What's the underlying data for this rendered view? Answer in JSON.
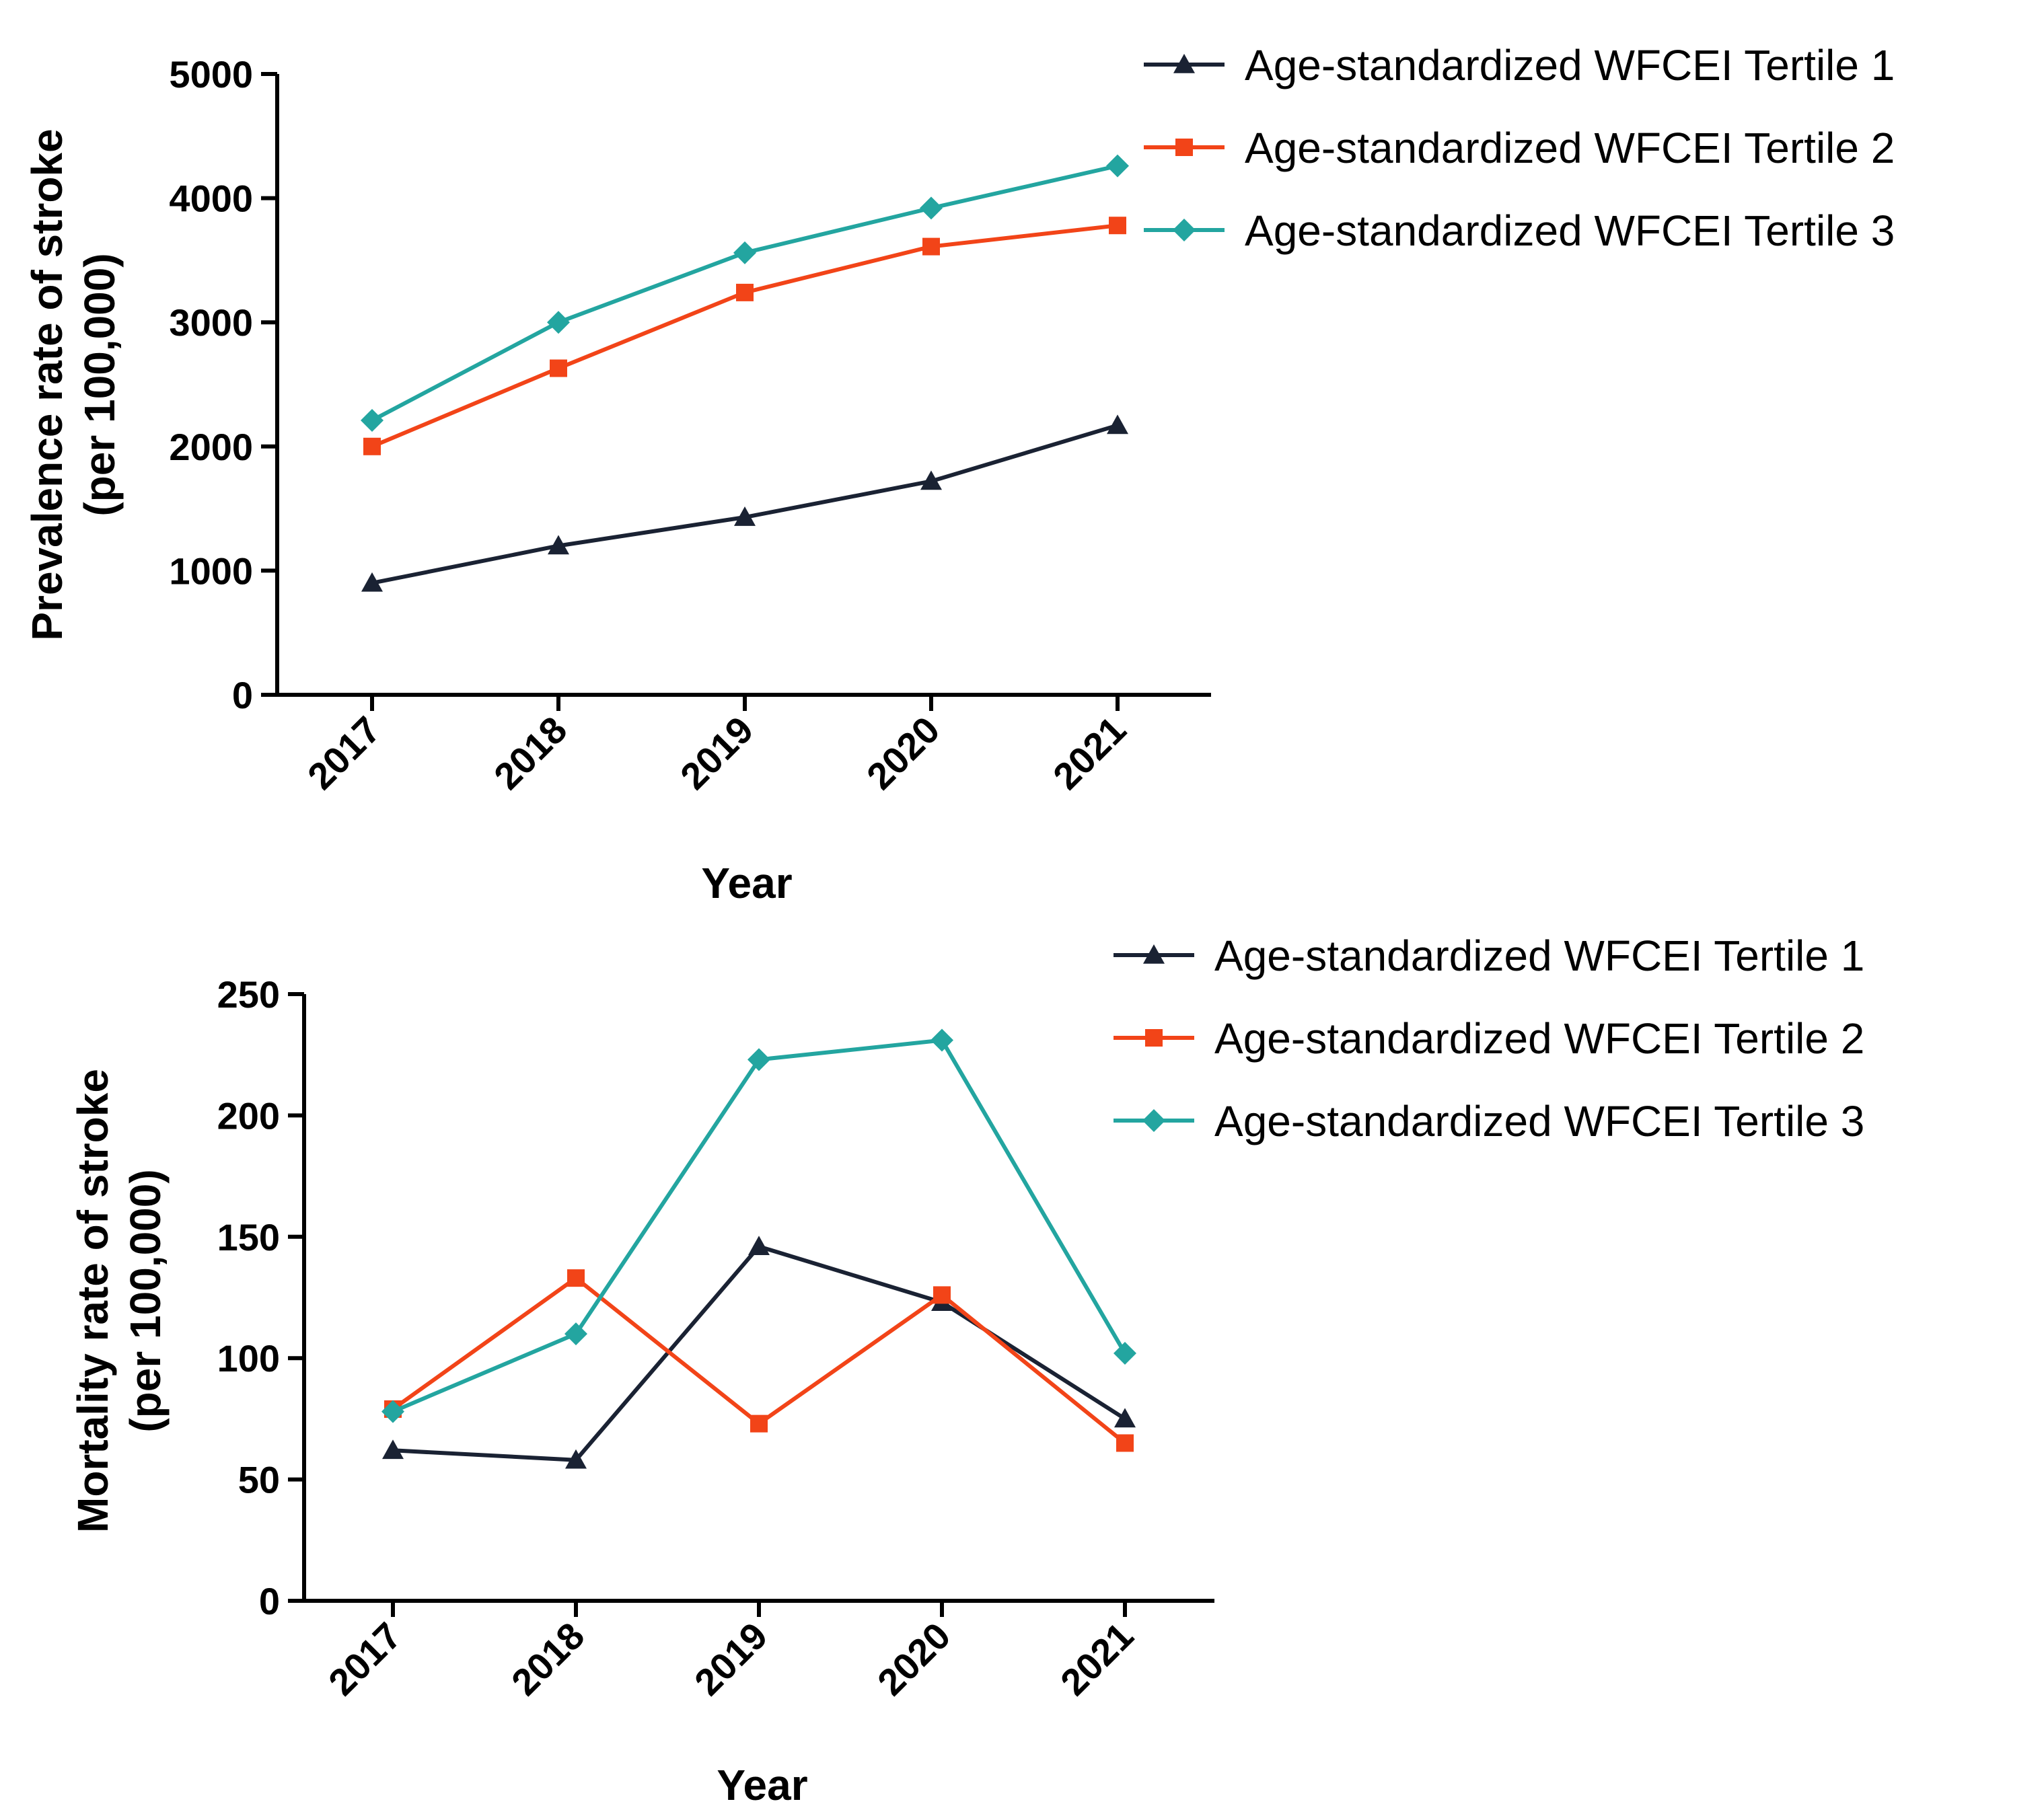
{
  "colors": {
    "tertile1": "#1a2233",
    "tertile2": "#f24418",
    "tertile3": "#23a5a0"
  },
  "chart_data": [
    {
      "type": "line",
      "title": "",
      "xlabel": "Year",
      "ylabel_line1": "Prevalence rate of stroke",
      "ylabel_line2": "(per 100,000)",
      "categories": [
        "2017",
        "2018",
        "2019",
        "2020",
        "2021"
      ],
      "ylim": [
        0,
        5000
      ],
      "yticks": [
        0,
        1000,
        2000,
        3000,
        4000,
        5000
      ],
      "legend_position": "top-right",
      "series": [
        {
          "name": "Age-standardized WFCEI Tertile 1",
          "marker": "triangle",
          "color_key": "tertile1",
          "values": [
            900,
            1200,
            1430,
            1720,
            2170
          ]
        },
        {
          "name": "Age-standardized WFCEI Tertile 2",
          "marker": "square",
          "color_key": "tertile2",
          "values": [
            2000,
            2630,
            3240,
            3610,
            3780
          ]
        },
        {
          "name": "Age-standardized WFCEI Tertile 3",
          "marker": "diamond",
          "color_key": "tertile3",
          "values": [
            2210,
            3000,
            3560,
            3920,
            4260
          ]
        }
      ]
    },
    {
      "type": "line",
      "title": "",
      "xlabel": "Year",
      "ylabel_line1": "Mortality rate of stroke",
      "ylabel_line2": "(per 100,000)",
      "categories": [
        "2017",
        "2018",
        "2019",
        "2020",
        "2021"
      ],
      "ylim": [
        0,
        250
      ],
      "yticks": [
        0,
        50,
        100,
        150,
        200,
        250
      ],
      "legend_position": "top-right",
      "series": [
        {
          "name": "Age-standardized WFCEI Tertile 1",
          "marker": "triangle",
          "color_key": "tertile1",
          "values": [
            62,
            58,
            146,
            123,
            75
          ]
        },
        {
          "name": "Age-standardized WFCEI Tertile 2",
          "marker": "square",
          "color_key": "tertile2",
          "values": [
            79,
            133,
            73,
            126,
            65
          ]
        },
        {
          "name": "Age-standardized WFCEI Tertile 3",
          "marker": "diamond",
          "color_key": "tertile3",
          "values": [
            78,
            110,
            223,
            231,
            102
          ]
        }
      ]
    }
  ]
}
